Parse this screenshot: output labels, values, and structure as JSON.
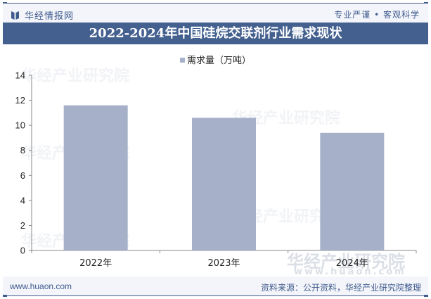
{
  "header": {
    "brand": "华经情报网",
    "slogan": "专业严谨 • 客观科学"
  },
  "title": "2022-2024年中国硅烷交联剂行业需求现状",
  "legend": {
    "label": "需求量（万吨）",
    "color": "#a6b1c9"
  },
  "footer": {
    "url": "www.huaon.com",
    "source": "资料来源：公开资料，华经产业研究院整理"
  },
  "watermark": {
    "text": "华经产业研究院",
    "url": "www.huaon.com"
  },
  "colors": {
    "brand": "#3f5a8d",
    "title_bar": "#44608f",
    "bar": "#a6b1c9",
    "band": "#f3f5fa"
  },
  "chart_data": {
    "type": "bar",
    "title": "2022-2024年中国硅烷交联剂行业需求现状",
    "categories": [
      "2022年",
      "2023年",
      "2024年"
    ],
    "series": [
      {
        "name": "需求量（万吨）",
        "values": [
          11.6,
          10.6,
          9.4
        ]
      }
    ],
    "xlabel": "",
    "ylabel": "",
    "ylim": [
      0,
      14
    ],
    "yticks": [
      0,
      2,
      4,
      6,
      8,
      10,
      12,
      14
    ],
    "grid": false,
    "legend_position": "top"
  }
}
